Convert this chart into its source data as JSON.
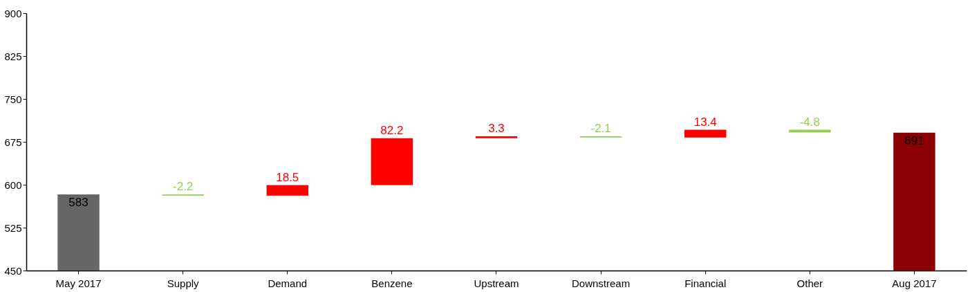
{
  "chart_data": {
    "type": "bar",
    "categories": [
      "May 2017",
      "Supply",
      "Demand",
      "Benzene",
      "Upstream",
      "Downstream",
      "Financial",
      "Other",
      "Aug 2017"
    ],
    "values": [
      583,
      -2.2,
      18.5,
      82.2,
      3.3,
      -2.1,
      13.4,
      -4.8,
      691
    ],
    "base": [
      null,
      583,
      580.8,
      599.3,
      681.5,
      684.8,
      682.7,
      696.1,
      null
    ],
    "colors": [
      "#666666",
      "#92d050",
      "#ff0000",
      "#ff0000",
      "#ff0000",
      "#92d050",
      "#ff0000",
      "#92d050",
      "#8b0000"
    ],
    "ylim": [
      450,
      900
    ],
    "yticks": [
      450,
      525,
      600,
      675,
      750,
      825,
      900
    ],
    "data_labels": true,
    "grid": false
  }
}
